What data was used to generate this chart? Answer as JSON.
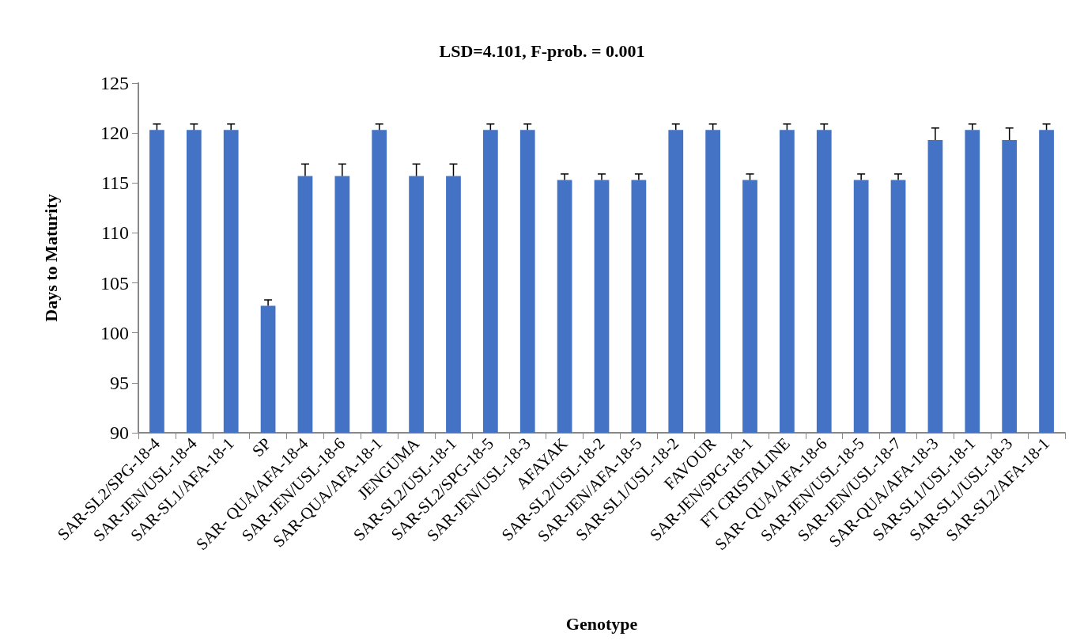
{
  "chart_data": {
    "type": "bar",
    "title": "LSD=4.101, F-prob. = 0.001",
    "xlabel": "Genotype",
    "ylabel": "Days to Maturity",
    "categories": [
      "SAR-SL2/SPG-18-4",
      "SAR-JEN/USL-18-4",
      "SAR-SL1/AFA-18-1",
      "SP",
      "SAR- QUA/AFA-18-4",
      "SAR-JEN/USL-18-6",
      "SAR-QUA/AFA-18-1",
      "JENGUMA",
      "SAR-SL2/USL-18-1",
      "SAR-SL2/SPG-18-5",
      "SAR-JEN/USL-18-3",
      "AFAYAK",
      "SAR-SL2/USL-18-2",
      "SAR-JEN/AFA-18-5",
      "SAR-SL1/USL-18-2",
      "FAVOUR",
      "SAR-JEN/SPG-18-1",
      "FT CRISTALINE",
      "SAR- QUA/AFA-18-6",
      "SAR-JEN/USL-18-5",
      "SAR-JEN/USL-18-7",
      "SAR-QUA/AFA-18-3",
      "SAR-SL1/USL-18-1",
      "SAR-SL1/USL-18-3",
      "SAR-SL2/AFA-18-1"
    ],
    "values": [
      120.3,
      120.3,
      120.3,
      102.7,
      115.7,
      115.7,
      120.3,
      115.7,
      115.7,
      120.3,
      120.3,
      115.3,
      115.3,
      115.3,
      120.3,
      120.3,
      115.3,
      120.3,
      120.3,
      115.3,
      115.3,
      119.3,
      120.3,
      119.3,
      120.3
    ],
    "errors": [
      0.6,
      0.6,
      0.6,
      0.6,
      1.2,
      1.2,
      0.6,
      1.2,
      1.2,
      0.6,
      0.6,
      0.6,
      0.6,
      0.6,
      0.6,
      0.6,
      0.6,
      0.6,
      0.6,
      0.6,
      0.6,
      1.2,
      0.6,
      1.2,
      0.6
    ],
    "color": "#4472c4",
    "ylim": [
      90,
      125
    ],
    "yticks": [
      90,
      95,
      100,
      105,
      110,
      115,
      120,
      125
    ],
    "grid": false
  }
}
